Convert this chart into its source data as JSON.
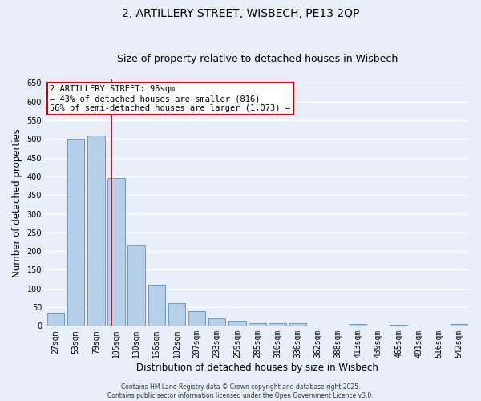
{
  "title_line1": "2, ARTILLERY STREET, WISBECH, PE13 2QP",
  "title_line2": "Size of property relative to detached houses in Wisbech",
  "xlabel": "Distribution of detached houses by size in Wisbech",
  "ylabel": "Number of detached properties",
  "categories": [
    "27sqm",
    "53sqm",
    "79sqm",
    "105sqm",
    "130sqm",
    "156sqm",
    "182sqm",
    "207sqm",
    "233sqm",
    "259sqm",
    "285sqm",
    "310sqm",
    "336sqm",
    "362sqm",
    "388sqm",
    "413sqm",
    "439sqm",
    "465sqm",
    "491sqm",
    "516sqm",
    "542sqm"
  ],
  "values": [
    35,
    500,
    510,
    395,
    215,
    110,
    60,
    40,
    20,
    14,
    8,
    8,
    8,
    0,
    0,
    5,
    0,
    2,
    0,
    0,
    5
  ],
  "bar_color": "#b8cfe8",
  "bar_edge_color": "#6699cc",
  "background_color": "#e8eef8",
  "grid_color": "#ffffff",
  "vline_x_index": 2.77,
  "vline_color": "#cc0000",
  "annotation_text": "2 ARTILLERY STREET: 96sqm\n← 43% of detached houses are smaller (816)\n56% of semi-detached houses are larger (1,073) →",
  "annotation_box_color": "#cc0000",
  "ylim": [
    0,
    660
  ],
  "yticks": [
    0,
    50,
    100,
    150,
    200,
    250,
    300,
    350,
    400,
    450,
    500,
    550,
    600,
    650
  ],
  "footer_text": "Contains HM Land Registry data © Crown copyright and database right 2025.\nContains public sector information licensed under the Open Government Licence v3.0.",
  "title_fontsize": 10,
  "subtitle_fontsize": 9,
  "tick_fontsize": 7,
  "ylabel_fontsize": 8.5,
  "xlabel_fontsize": 8.5,
  "annot_fontsize": 7.5
}
